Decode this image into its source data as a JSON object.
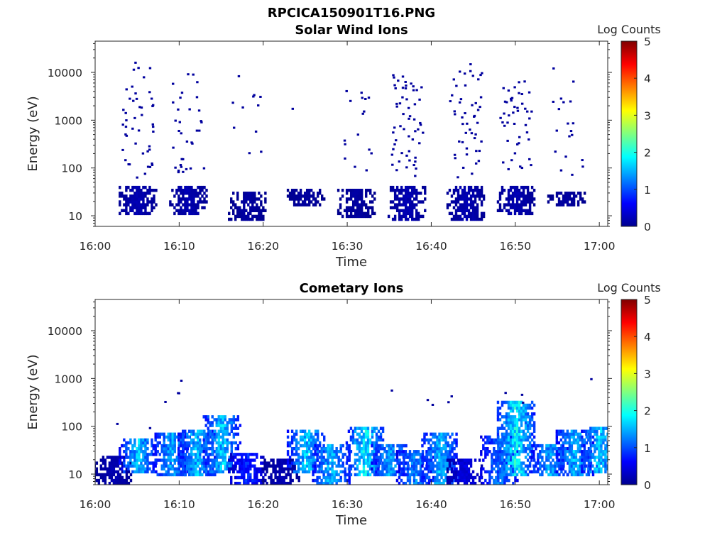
{
  "figure_title": "RPCICA150901T16.PNG",
  "chart_data": [
    {
      "type": "heatmap",
      "title": "Solar Wind Ions",
      "xlabel": "Time",
      "ylabel": "Energy (eV)",
      "yscale": "log",
      "ylim": [
        6,
        45000
      ],
      "xlim": [
        "16:00",
        "17:01"
      ],
      "x_ticks": [
        "16:00",
        "16:10",
        "16:20",
        "16:30",
        "16:40",
        "16:50",
        "17:00"
      ],
      "y_ticks": [
        "10",
        "100",
        "1000",
        "10000"
      ],
      "colorbar": {
        "label": "Log Counts",
        "range": [
          0,
          5
        ],
        "ticks": [
          "0",
          "1",
          "2",
          "3",
          "4",
          "5"
        ],
        "colormap": "jet"
      },
      "grid": false,
      "bursts": [
        {
          "time": "16:05",
          "low_energy_eV": [
            10,
            40
          ],
          "peak_log_counts": 0.3,
          "scatter_eV": [
            60,
            20000
          ],
          "scatter_points": 46
        },
        {
          "time": "16:11",
          "low_energy_eV": [
            10,
            40
          ],
          "peak_log_counts": 0.3,
          "scatter_eV": [
            80,
            10000
          ],
          "scatter_points": 34
        },
        {
          "time": "16:18",
          "low_energy_eV": [
            7,
            30
          ],
          "peak_log_counts": 0.2,
          "scatter_eV": [
            90,
            10000
          ],
          "scatter_points": 11
        },
        {
          "time": "16:25",
          "low_energy_eV": [
            15,
            35
          ],
          "peak_log_counts": 0.2,
          "scatter_eV": [
            1700,
            1700
          ],
          "scatter_points": 1
        },
        {
          "time": "16:31",
          "low_energy_eV": [
            8,
            35
          ],
          "peak_log_counts": 0.2,
          "scatter_eV": [
            60,
            6000
          ],
          "scatter_points": 16
        },
        {
          "time": "16:37",
          "low_energy_eV": [
            7,
            40
          ],
          "peak_log_counts": 0.3,
          "scatter_eV": [
            60,
            9000
          ],
          "scatter_points": 56
        },
        {
          "time": "16:44",
          "low_energy_eV": [
            7,
            40
          ],
          "peak_log_counts": 0.3,
          "scatter_eV": [
            60,
            16000
          ],
          "scatter_points": 48
        },
        {
          "time": "16:50",
          "low_energy_eV": [
            10,
            40
          ],
          "peak_log_counts": 0.3,
          "scatter_eV": [
            80,
            9000
          ],
          "scatter_points": 44
        },
        {
          "time": "16:56",
          "low_energy_eV": [
            15,
            30
          ],
          "peak_log_counts": 0.2,
          "scatter_eV": [
            70,
            14000
          ],
          "scatter_points": 19
        }
      ]
    },
    {
      "type": "heatmap",
      "title": "Cometary Ions",
      "xlabel": "Time",
      "ylabel": "Energy (eV)",
      "yscale": "log",
      "ylim": [
        6,
        45000
      ],
      "xlim": [
        "16:00",
        "17:01"
      ],
      "x_ticks": [
        "16:00",
        "16:10",
        "16:20",
        "16:30",
        "16:40",
        "16:50",
        "17:00"
      ],
      "y_ticks": [
        "10",
        "100",
        "1000",
        "10000"
      ],
      "colorbar": {
        "label": "Log Counts",
        "range": [
          0,
          5
        ],
        "ticks": [
          "0",
          "1",
          "2",
          "3",
          "4",
          "5"
        ],
        "colormap": "jet"
      },
      "grid": false,
      "bursts": [
        {
          "time": "16:02",
          "low_energy_eV": [
            6,
            22
          ],
          "peak_log_counts": 0.3,
          "scatter_eV": [
            110,
            110
          ],
          "scatter_points": 1
        },
        {
          "time": "16:05",
          "low_energy_eV": [
            10,
            55
          ],
          "peak_log_counts": 1.9,
          "scatter_eV": [
            90,
            90
          ],
          "scatter_points": 1
        },
        {
          "time": "16:09",
          "low_energy_eV": [
            8,
            65
          ],
          "peak_log_counts": 1.8,
          "scatter_eV": [
            300,
            1000
          ],
          "scatter_points": 4
        },
        {
          "time": "16:12",
          "low_energy_eV": [
            8,
            80
          ],
          "peak_log_counts": 1.9,
          "scatter_eV": [
            0,
            0
          ],
          "scatter_points": 0
        },
        {
          "time": "16:15",
          "low_energy_eV": [
            10,
            150
          ],
          "peak_log_counts": 2.0,
          "scatter_eV": [
            0,
            0
          ],
          "scatter_points": 0
        },
        {
          "time": "16:18",
          "low_energy_eV": [
            6,
            25
          ],
          "peak_log_counts": 1.0,
          "scatter_eV": [
            0,
            0
          ],
          "scatter_points": 0
        },
        {
          "time": "16:22",
          "low_energy_eV": [
            6,
            20
          ],
          "peak_log_counts": 0.3,
          "scatter_eV": [
            0,
            0
          ],
          "scatter_points": 0
        },
        {
          "time": "16:25",
          "low_energy_eV": [
            10,
            80
          ],
          "peak_log_counts": 2.0,
          "scatter_eV": [
            0,
            0
          ],
          "scatter_points": 0
        },
        {
          "time": "16:28",
          "low_energy_eV": [
            6,
            40
          ],
          "peak_log_counts": 1.9,
          "scatter_eV": [
            0,
            0
          ],
          "scatter_points": 0
        },
        {
          "time": "16:32",
          "low_energy_eV": [
            8,
            90
          ],
          "peak_log_counts": 2.2,
          "scatter_eV": [
            0,
            0
          ],
          "scatter_points": 0
        },
        {
          "time": "16:35",
          "low_energy_eV": [
            8,
            40
          ],
          "peak_log_counts": 1.8,
          "scatter_eV": [
            550,
            550
          ],
          "scatter_points": 1
        },
        {
          "time": "16:38",
          "low_energy_eV": [
            6,
            30
          ],
          "peak_log_counts": 1.6,
          "scatter_eV": [
            0,
            0
          ],
          "scatter_points": 0
        },
        {
          "time": "16:41",
          "low_energy_eV": [
            6,
            70
          ],
          "peak_log_counts": 1.9,
          "scatter_eV": [
            270,
            600
          ],
          "scatter_points": 4
        },
        {
          "time": "16:44",
          "low_energy_eV": [
            6,
            20
          ],
          "peak_log_counts": 0.6,
          "scatter_eV": [
            0,
            0
          ],
          "scatter_points": 0
        },
        {
          "time": "16:48",
          "low_energy_eV": [
            6,
            60
          ],
          "peak_log_counts": 1.5,
          "scatter_eV": [
            0,
            0
          ],
          "scatter_points": 0
        },
        {
          "time": "16:50",
          "low_energy_eV": [
            8,
            300
          ],
          "peak_log_counts": 2.3,
          "scatter_eV": [
            150,
            950
          ],
          "scatter_points": 3
        },
        {
          "time": "16:54",
          "low_energy_eV": [
            8,
            40
          ],
          "peak_log_counts": 1.8,
          "scatter_eV": [
            0,
            0
          ],
          "scatter_points": 0
        },
        {
          "time": "16:57",
          "low_energy_eV": [
            8,
            80
          ],
          "peak_log_counts": 1.9,
          "scatter_eV": [
            0,
            0
          ],
          "scatter_points": 0
        },
        {
          "time": "17:00",
          "low_energy_eV": [
            10,
            90
          ],
          "peak_log_counts": 2.0,
          "scatter_eV": [
            950,
            950
          ],
          "scatter_points": 1
        }
      ]
    }
  ]
}
